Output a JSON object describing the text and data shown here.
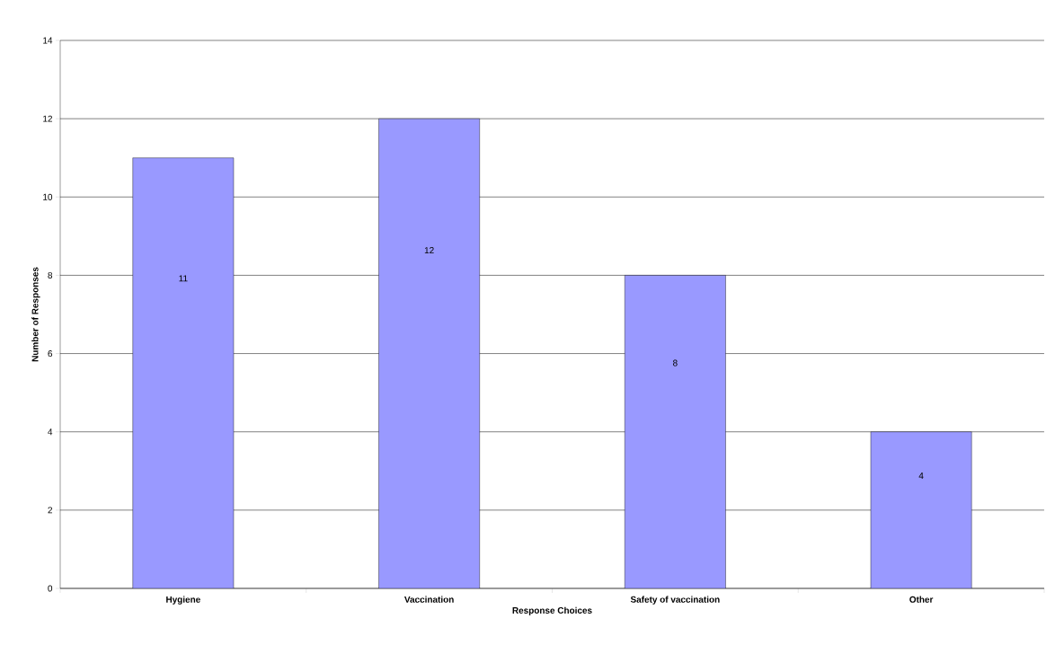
{
  "chart_data": {
    "type": "bar",
    "xlabel": "Response Choices",
    "ylabel": "Number of Responses",
    "categories": [
      "Hygiene",
      "Vaccination",
      "Safety of vaccination",
      "Other"
    ],
    "values": [
      11,
      12,
      8,
      4
    ],
    "color": "#9999ff",
    "ylim": [
      0,
      14
    ],
    "yticks": [
      0,
      2,
      4,
      6,
      8,
      10,
      12,
      14
    ],
    "grid": "y",
    "data_labels": true
  }
}
